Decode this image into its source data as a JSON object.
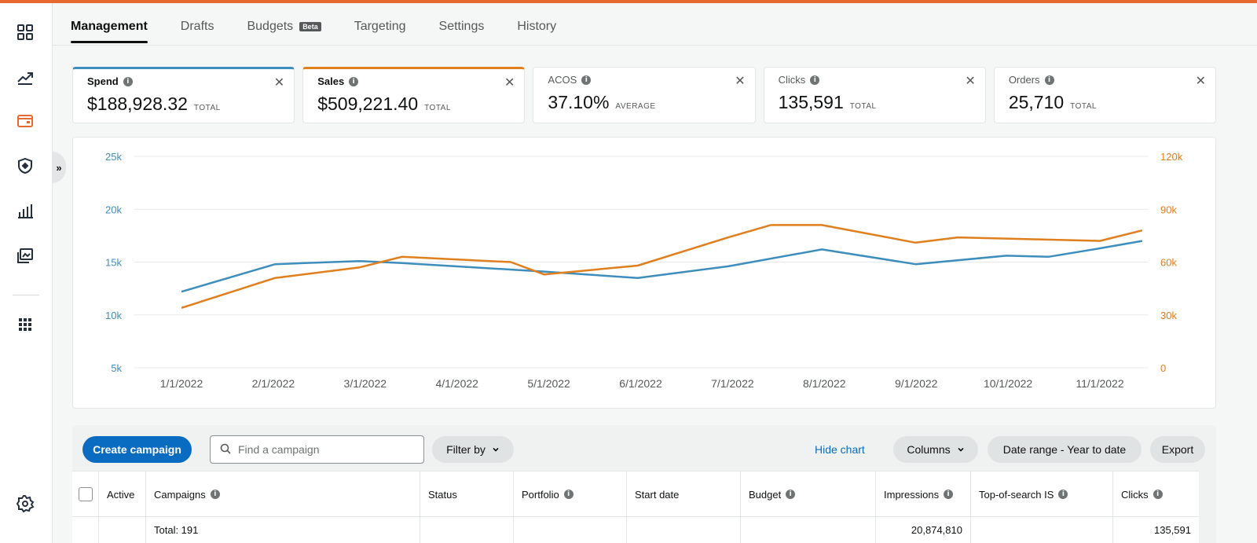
{
  "tabs": [
    {
      "label": "Management",
      "active": true
    },
    {
      "label": "Drafts",
      "active": false
    },
    {
      "label": "Budgets",
      "badge": "Beta",
      "active": false
    },
    {
      "label": "Targeting",
      "active": false
    },
    {
      "label": "Settings",
      "active": false
    },
    {
      "label": "History",
      "active": false
    }
  ],
  "nav_icons": [
    "dashboard-icon",
    "trending-icon",
    "campaign-icon",
    "shield-icon",
    "bar-chart-icon",
    "media-icon",
    "apps-grid-icon",
    "settings-icon"
  ],
  "collapse_label": "»",
  "metrics": [
    {
      "label": "Spend",
      "value": "$188,928.32",
      "unit": "TOTAL",
      "accent": "#3e8ebd"
    },
    {
      "label": "Sales",
      "value": "$509,221.40",
      "unit": "TOTAL",
      "accent": "#e07f1d"
    },
    {
      "label": "ACOS",
      "value": "37.10%",
      "unit": "AVERAGE"
    },
    {
      "label": "Clicks",
      "value": "135,591",
      "unit": "TOTAL"
    },
    {
      "label": "Orders",
      "value": "25,710",
      "unit": "TOTAL"
    }
  ],
  "chart_data": {
    "type": "line",
    "x": [
      "1/1/2022",
      "2/1/2022",
      "3/1/2022",
      "4/1/2022",
      "5/1/2022",
      "6/1/2022",
      "7/1/2022",
      "8/1/2022",
      "9/1/2022",
      "10/1/2022",
      "11/1/2022"
    ],
    "series": [
      {
        "axis": "left",
        "color": "#3e8ebd",
        "points": [
          [
            "2022-01-01",
            12200
          ],
          [
            "2022-02-01",
            14800
          ],
          [
            "2022-03-01",
            15100
          ],
          [
            "2022-03-15",
            14900
          ],
          [
            "2022-05-01",
            14100
          ],
          [
            "2022-06-01",
            13500
          ],
          [
            "2022-07-01",
            14600
          ],
          [
            "2022-08-01",
            16200
          ],
          [
            "2022-09-01",
            14800
          ],
          [
            "2022-10-01",
            15600
          ],
          [
            "2022-10-15",
            15500
          ],
          [
            "2022-11-01",
            16300
          ],
          [
            "2022-11-15",
            17000
          ]
        ]
      },
      {
        "axis": "right",
        "color": "#e07f1d",
        "points": [
          [
            "2022-01-01",
            34000
          ],
          [
            "2022-02-01",
            51000
          ],
          [
            "2022-03-01",
            57000
          ],
          [
            "2022-03-15",
            63000
          ],
          [
            "2022-04-20",
            60000
          ],
          [
            "2022-05-01",
            53000
          ],
          [
            "2022-06-01",
            58000
          ],
          [
            "2022-07-01",
            74000
          ],
          [
            "2022-07-15",
            81000
          ],
          [
            "2022-08-01",
            81000
          ],
          [
            "2022-09-01",
            71000
          ],
          [
            "2022-09-15",
            74000
          ],
          [
            "2022-11-01",
            72000
          ],
          [
            "2022-11-15",
            78000
          ]
        ]
      }
    ],
    "y_left": {
      "ticks": [
        "5k",
        "10k",
        "15k",
        "20k",
        "25k"
      ],
      "range": [
        5000,
        25000
      ],
      "color": "#3e8ebd"
    },
    "y_right": {
      "ticks": [
        "0",
        "30k",
        "60k",
        "90k",
        "120k"
      ],
      "range": [
        0,
        120000
      ],
      "color": "#e07f1d"
    },
    "grid": true
  },
  "toolbar": {
    "create_label": "Create campaign",
    "search_placeholder": "Find a campaign",
    "filter_label": "Filter by",
    "hide_chart_label": "Hide chart",
    "columns_label": "Columns",
    "date_range_label": "Date range - Year to date",
    "export_label": "Export"
  },
  "table": {
    "columns": [
      {
        "label": "Active",
        "info": false
      },
      {
        "label": "Campaigns",
        "info": true
      },
      {
        "label": "Status",
        "info": false
      },
      {
        "label": "Portfolio",
        "info": true
      },
      {
        "label": "Start date",
        "info": false
      },
      {
        "label": "Budget",
        "info": true
      },
      {
        "label": "Impressions",
        "info": true
      },
      {
        "label": "Top-of-search IS",
        "info": true
      },
      {
        "label": "Clicks",
        "info": true
      }
    ],
    "total_row": {
      "campaigns": "Total: 191",
      "impressions": "20,874,810",
      "clicks": "135,591"
    }
  }
}
